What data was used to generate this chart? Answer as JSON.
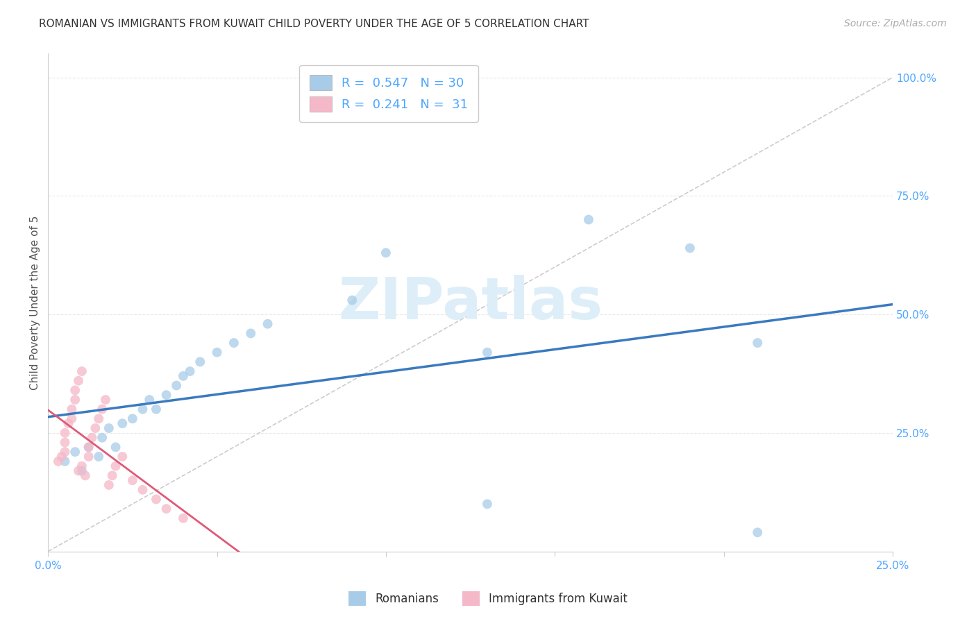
{
  "title": "ROMANIAN VS IMMIGRANTS FROM KUWAIT CHILD POVERTY UNDER THE AGE OF 5 CORRELATION CHART",
  "source": "Source: ZipAtlas.com",
  "ylabel": "Child Poverty Under the Age of 5",
  "xlim": [
    0.0,
    0.25
  ],
  "ylim": [
    0.0,
    1.05
  ],
  "xticks": [
    0.0,
    0.05,
    0.1,
    0.15,
    0.2,
    0.25
  ],
  "yticks": [
    0.25,
    0.5,
    0.75,
    1.0
  ],
  "xticklabels_show": [
    "0.0%",
    "25.0%"
  ],
  "yticklabels": [
    "25.0%",
    "50.0%",
    "75.0%",
    "100.0%"
  ],
  "blue_scatter_x": [
    0.005,
    0.008,
    0.01,
    0.012,
    0.015,
    0.016,
    0.018,
    0.02,
    0.022,
    0.025,
    0.028,
    0.03,
    0.032,
    0.035,
    0.038,
    0.04,
    0.042,
    0.045,
    0.05,
    0.055,
    0.06,
    0.065,
    0.09,
    0.1,
    0.13,
    0.19,
    0.21,
    0.21,
    0.13,
    0.16
  ],
  "blue_scatter_y": [
    0.19,
    0.21,
    0.17,
    0.22,
    0.2,
    0.24,
    0.26,
    0.22,
    0.27,
    0.28,
    0.3,
    0.32,
    0.3,
    0.33,
    0.35,
    0.37,
    0.38,
    0.4,
    0.42,
    0.44,
    0.46,
    0.48,
    0.53,
    0.63,
    0.42,
    0.64,
    0.44,
    0.04,
    0.1,
    0.7
  ],
  "pink_scatter_x": [
    0.003,
    0.004,
    0.005,
    0.005,
    0.005,
    0.006,
    0.007,
    0.007,
    0.008,
    0.008,
    0.009,
    0.009,
    0.01,
    0.01,
    0.011,
    0.012,
    0.012,
    0.013,
    0.014,
    0.015,
    0.016,
    0.017,
    0.018,
    0.019,
    0.02,
    0.022,
    0.025,
    0.028,
    0.032,
    0.035,
    0.04
  ],
  "pink_scatter_y": [
    0.19,
    0.2,
    0.21,
    0.23,
    0.25,
    0.27,
    0.28,
    0.3,
    0.32,
    0.34,
    0.17,
    0.36,
    0.38,
    0.18,
    0.16,
    0.2,
    0.22,
    0.24,
    0.26,
    0.28,
    0.3,
    0.32,
    0.14,
    0.16,
    0.18,
    0.2,
    0.15,
    0.13,
    0.11,
    0.09,
    0.07
  ],
  "blue_R": 0.547,
  "blue_N": 30,
  "pink_R": 0.241,
  "pink_N": 31,
  "blue_color": "#a8cce8",
  "pink_color": "#f4b8c8",
  "blue_line_color": "#3a7abf",
  "pink_line_color": "#e05878",
  "ref_line_color": "#cccccc",
  "grid_color": "#e8e8e8",
  "marker_size": 100,
  "legend_fontsize": 13,
  "title_fontsize": 11,
  "axis_label_fontsize": 11,
  "tick_fontsize": 11,
  "source_fontsize": 10,
  "watermark_text": "ZIPatlas",
  "watermark_color": "#ddeef8",
  "watermark_fontsize": 60,
  "tick_color": "#4da6ff",
  "ylabel_color": "#555555"
}
